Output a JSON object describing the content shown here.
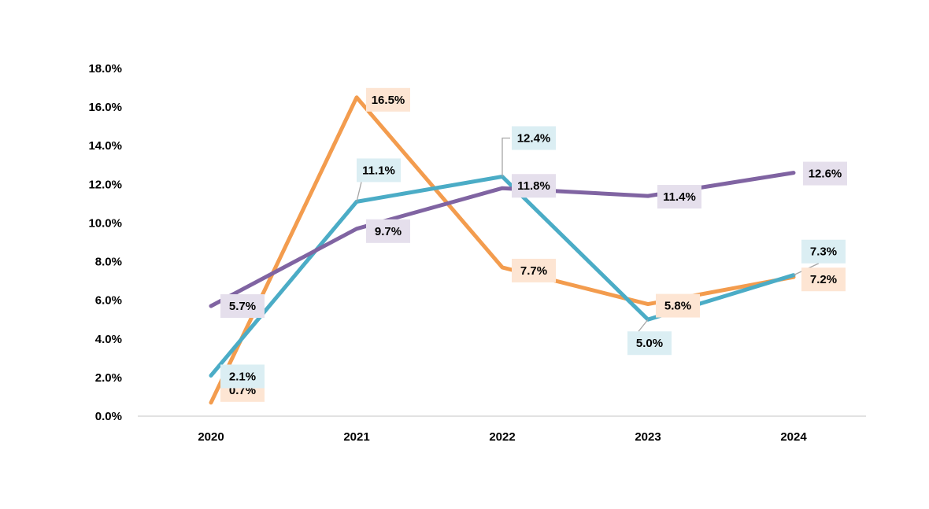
{
  "chart_data": {
    "type": "line",
    "title": "",
    "xlabel": "",
    "ylabel": "",
    "categories": [
      "2020",
      "2021",
      "2022",
      "2023",
      "2024"
    ],
    "y_tick_labels": [
      "0.0%",
      "2.0%",
      "4.0%",
      "6.0%",
      "8.0%",
      "10.0%",
      "12.0%",
      "14.0%",
      "16.0%",
      "18.0%"
    ],
    "ylim": [
      0,
      18
    ],
    "grid": false,
    "legend": "none",
    "series": [
      {
        "color": "#F39C4E",
        "label_bg": "#FDE5D3",
        "values": [
          0.7,
          16.5,
          7.7,
          5.8,
          7.2
        ],
        "labels": [
          "0.7%",
          "16.5%",
          "7.7%",
          "5.8%",
          "7.2%"
        ]
      },
      {
        "color": "#4BACC6",
        "label_bg": "#DBEEF3",
        "values": [
          2.1,
          11.1,
          12.4,
          5.0,
          7.3
        ],
        "labels": [
          "2.1%",
          "11.1%",
          "12.4%",
          "5.0%",
          "7.3%"
        ]
      },
      {
        "color": "#8064A2",
        "label_bg": "#E5DFEC",
        "values": [
          5.7,
          9.7,
          11.8,
          11.4,
          12.6
        ],
        "labels": [
          "5.7%",
          "9.7%",
          "11.8%",
          "11.4%",
          "12.6%"
        ]
      }
    ]
  }
}
